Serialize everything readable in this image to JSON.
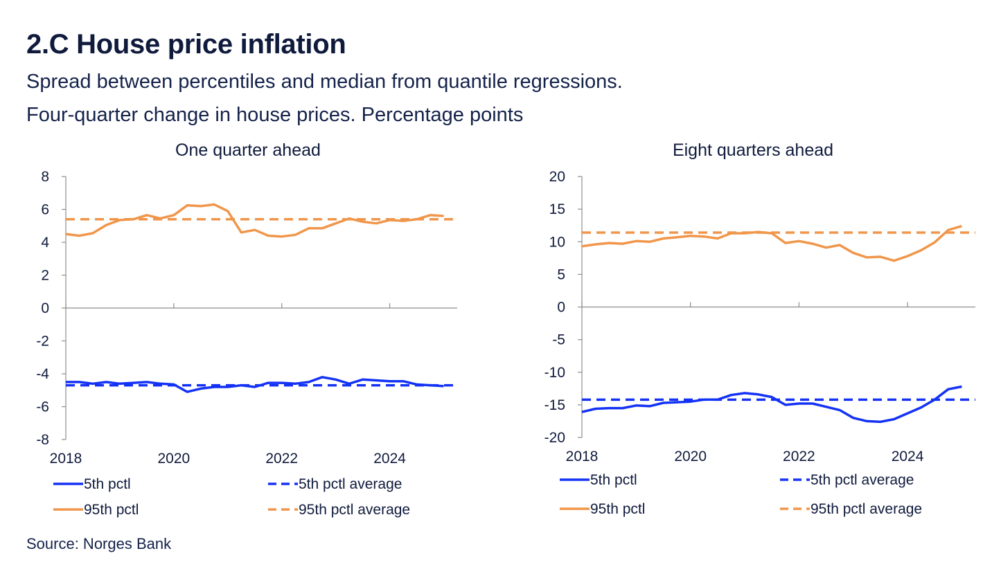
{
  "figure": {
    "title": "2.C House price inflation",
    "subtitle_line1": "Spread between percentiles and median from quantile regressions.",
    "subtitle_line2": "Four-quarter change in house prices. Percentage points",
    "source": "Source: Norges Bank"
  },
  "colors": {
    "blue": "#1432f5",
    "orange": "#f0964b",
    "axis": "#8c8c8c"
  },
  "chart_data": [
    {
      "type": "line",
      "title": "One quarter ahead",
      "xlabel": "",
      "ylabel": "",
      "xlim": [
        2018,
        2025.25
      ],
      "ylim": [
        -8,
        8
      ],
      "yticks": [
        8,
        6,
        4,
        2,
        0,
        -2,
        -4,
        -6,
        -8
      ],
      "xticks": [
        2018,
        2020,
        2022,
        2024
      ],
      "x": [
        2018.0,
        2018.25,
        2018.5,
        2018.75,
        2019.0,
        2019.25,
        2019.5,
        2019.75,
        2020.0,
        2020.25,
        2020.5,
        2020.75,
        2021.0,
        2021.25,
        2021.5,
        2021.75,
        2022.0,
        2022.25,
        2022.5,
        2022.75,
        2023.0,
        2023.25,
        2023.5,
        2023.75,
        2024.0,
        2024.25,
        2024.5,
        2024.75,
        2025.0
      ],
      "series": [
        {
          "name": "5th pctl",
          "color": "blue",
          "style": "solid",
          "values": [
            -4.5,
            -4.5,
            -4.6,
            -4.5,
            -4.6,
            -4.55,
            -4.5,
            -4.6,
            -4.65,
            -5.1,
            -4.9,
            -4.8,
            -4.8,
            -4.7,
            -4.8,
            -4.55,
            -4.55,
            -4.6,
            -4.5,
            -4.2,
            -4.35,
            -4.6,
            -4.35,
            -4.4,
            -4.45,
            -4.45,
            -4.65,
            -4.7,
            -4.75
          ]
        },
        {
          "name": "5th pctl average",
          "color": "blue",
          "style": "dashed",
          "constant": -4.7
        },
        {
          "name": "95th pctl",
          "color": "orange",
          "style": "solid",
          "values": [
            4.5,
            4.4,
            4.55,
            5.05,
            5.35,
            5.4,
            5.65,
            5.45,
            5.65,
            6.25,
            6.2,
            6.3,
            5.9,
            4.6,
            4.75,
            4.4,
            4.35,
            4.45,
            4.85,
            4.85,
            5.15,
            5.45,
            5.25,
            5.15,
            5.35,
            5.3,
            5.4,
            5.65,
            5.6
          ]
        },
        {
          "name": "95th pctl average",
          "color": "orange",
          "style": "dashed",
          "constant": 5.4
        }
      ],
      "legend": [
        {
          "label": "5th pctl",
          "color": "blue",
          "style": "solid"
        },
        {
          "label": "5th pctl average",
          "color": "blue",
          "style": "dashed"
        },
        {
          "label": "95th pctl",
          "color": "orange",
          "style": "solid"
        },
        {
          "label": "95th pctl average",
          "color": "orange",
          "style": "dashed"
        }
      ]
    },
    {
      "type": "line",
      "title": "Eight quarters ahead",
      "xlabel": "",
      "ylabel": "",
      "xlim": [
        2018,
        2025.25
      ],
      "ylim": [
        -20,
        20
      ],
      "yticks": [
        20,
        15,
        10,
        5,
        0,
        -5,
        -10,
        -15,
        -20
      ],
      "xticks": [
        2018,
        2020,
        2022,
        2024
      ],
      "x": [
        2018.0,
        2018.25,
        2018.5,
        2018.75,
        2019.0,
        2019.25,
        2019.5,
        2019.75,
        2020.0,
        2020.25,
        2020.5,
        2020.75,
        2021.0,
        2021.25,
        2021.5,
        2021.75,
        2022.0,
        2022.25,
        2022.5,
        2022.75,
        2023.0,
        2023.25,
        2023.5,
        2023.75,
        2024.0,
        2024.25,
        2024.5,
        2024.75,
        2025.0
      ],
      "series": [
        {
          "name": "5th pctl",
          "color": "blue",
          "style": "solid",
          "values": [
            -16.1,
            -15.6,
            -15.5,
            -15.5,
            -15.1,
            -15.2,
            -14.7,
            -14.6,
            -14.5,
            -14.2,
            -14.2,
            -13.5,
            -13.2,
            -13.4,
            -13.8,
            -15.0,
            -14.8,
            -14.8,
            -15.3,
            -15.8,
            -17.0,
            -17.5,
            -17.6,
            -17.2,
            -16.3,
            -15.4,
            -14.2,
            -12.6,
            -12.2
          ]
        },
        {
          "name": "5th pctl average",
          "color": "blue",
          "style": "dashed",
          "constant": -14.2
        },
        {
          "name": "95th pctl",
          "color": "orange",
          "style": "solid",
          "values": [
            9.3,
            9.6,
            9.8,
            9.7,
            10.1,
            10.0,
            10.5,
            10.7,
            10.9,
            10.8,
            10.5,
            11.3,
            11.3,
            11.5,
            11.3,
            9.8,
            10.1,
            9.7,
            9.1,
            9.5,
            8.3,
            7.6,
            7.7,
            7.1,
            7.8,
            8.7,
            9.9,
            11.8,
            12.4
          ]
        },
        {
          "name": "95th pctl average",
          "color": "orange",
          "style": "dashed",
          "constant": 11.4
        }
      ],
      "legend": [
        {
          "label": "5th pctl",
          "color": "blue",
          "style": "solid"
        },
        {
          "label": "5th pctl average",
          "color": "blue",
          "style": "dashed"
        },
        {
          "label": "95th pctl",
          "color": "orange",
          "style": "solid"
        },
        {
          "label": "95th pctl average",
          "color": "orange",
          "style": "dashed"
        }
      ]
    }
  ]
}
